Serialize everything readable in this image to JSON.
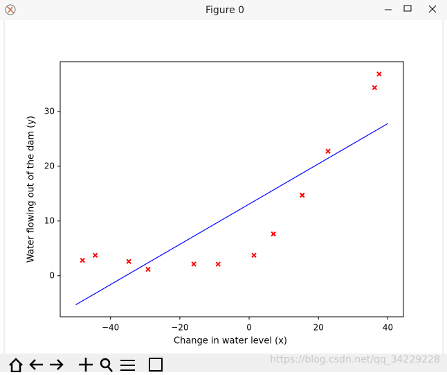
{
  "window": {
    "title": "Figure 0"
  },
  "watermark": "https://blog.csdn.net/qq_34229228",
  "chart_data": {
    "type": "scatter",
    "xlabel": "Change in water level (x)",
    "ylabel": "Water flowing out of the dam (y)",
    "xlim": [
      -54.5,
      44.5
    ],
    "ylim": [
      -7.5,
      39.1
    ],
    "xticks": [
      {
        "value": -40,
        "label": "−40"
      },
      {
        "value": -20,
        "label": "−20"
      },
      0,
      20,
      40
    ],
    "yticks": [
      0,
      10,
      20,
      30
    ],
    "series": [
      {
        "kind": "scatter",
        "marker": "x",
        "color": "#ff0000",
        "x": [
          -15.94,
          -29.15,
          36.19,
          37.49,
          -48.06,
          -8.94,
          15.31,
          -34.71,
          1.39,
          -44.38,
          7.01,
          22.76
        ],
        "values": [
          2.13,
          1.17,
          34.36,
          36.84,
          2.81,
          2.12,
          14.71,
          2.61,
          3.74,
          3.73,
          7.63,
          22.75
        ]
      },
      {
        "kind": "line",
        "color": "#0000ff",
        "x": [
          -50,
          40
        ],
        "values": [
          -5.3,
          27.8
        ]
      }
    ]
  }
}
